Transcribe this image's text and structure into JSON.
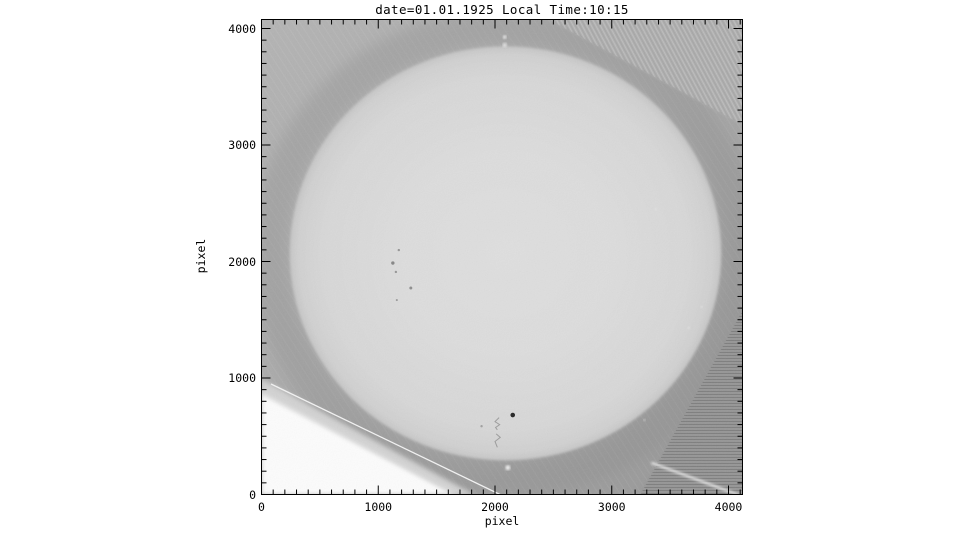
{
  "page": {
    "background_color": "#ffffff",
    "foreground_color": "#000000"
  },
  "chart_data": {
    "type": "heatmap",
    "subtype": "grayscale_photographic_plate_image",
    "title": "date=01.01.1925 Local Time:10:15",
    "xlabel": "pixel",
    "ylabel": "pixel",
    "xlim": [
      0,
      4115
    ],
    "ylim": [
      0,
      4077
    ],
    "x_ticks": [
      0,
      1000,
      2000,
      3000,
      4000
    ],
    "y_ticks": [
      0,
      1000,
      2000,
      3000,
      4000
    ],
    "minor_tick_interval": 100,
    "grid": "off",
    "legend": "none",
    "description": "Full-disk solar photographic plate scan: bright solar disk on grey plate background, white plate edge at lower-left corner, darker striped scanner regions in upper-right and lower-right corners, one prominent sunspot and faint spot cluster, pencil annotation squiggles, fiducial bright dots at top and bottom of disk, bright scratch streak at lower right.",
    "colors": {
      "disk": "#d9d9d9",
      "plate_background": "#a0a0a0",
      "dark_corner": "#8b8b8b",
      "white_corner": "#fcfcfc"
    },
    "image_features": {
      "solar_disk": {
        "cx": 2090,
        "cy": 2070,
        "rx": 1848,
        "ry": 1777
      },
      "sunspots": [
        {
          "x": 2152,
          "y": 682,
          "r": 2.3,
          "color": "#161616"
        },
        {
          "x": 1176,
          "y": 2098,
          "r": 1.2,
          "color": "#8f8f8f"
        },
        {
          "x": 1125,
          "y": 1987,
          "r": 1.7,
          "color": "#7d7d7d"
        },
        {
          "x": 1151,
          "y": 1910,
          "r": 1.2,
          "color": "#909090"
        },
        {
          "x": 1279,
          "y": 1772,
          "r": 1.5,
          "color": "#868686"
        },
        {
          "x": 1159,
          "y": 1669,
          "r": 1.1,
          "color": "#959595"
        },
        {
          "x": 1885,
          "y": 586,
          "r": 1.2,
          "color": "#9a9a9a"
        }
      ],
      "bright_dots": [
        {
          "x": 2083,
          "y": 3927,
          "r": 1.8,
          "color": "#eeeeee"
        },
        {
          "x": 2083,
          "y": 3858,
          "r": 2.2,
          "color": "#e2e2e2"
        },
        {
          "x": 2110,
          "y": 230,
          "r": 2.4,
          "color": "#f4f4f4"
        },
        {
          "x": 3660,
          "y": 1430,
          "r": 1.1,
          "color": "#eaeaea"
        },
        {
          "x": 3770,
          "y": 1610,
          "r": 1.0,
          "color": "#ededed"
        },
        {
          "x": 3280,
          "y": 640,
          "r": 1.0,
          "color": "#e9e9e9"
        },
        {
          "x": 3380,
          "y": 2450,
          "r": 1.0,
          "color": "#ececec"
        }
      ],
      "pencil_marks": [
        {
          "points": [
            [
              2035,
              660
            ],
            [
              2000,
              625
            ],
            [
              2040,
              600
            ],
            [
              2005,
              575
            ],
            [
              2020,
              555
            ]
          ],
          "color": "#8a8a8a"
        },
        {
          "points": [
            [
              2010,
              520
            ],
            [
              2045,
              490
            ],
            [
              2000,
              455
            ],
            [
              2020,
              405
            ]
          ],
          "color": "#8a8a8a"
        }
      ],
      "scratch_streak": {
        "x1": 3340,
        "y1": 272,
        "x2": 4115,
        "y2": -15,
        "color": "#f5f5f5",
        "width": 2
      }
    }
  }
}
